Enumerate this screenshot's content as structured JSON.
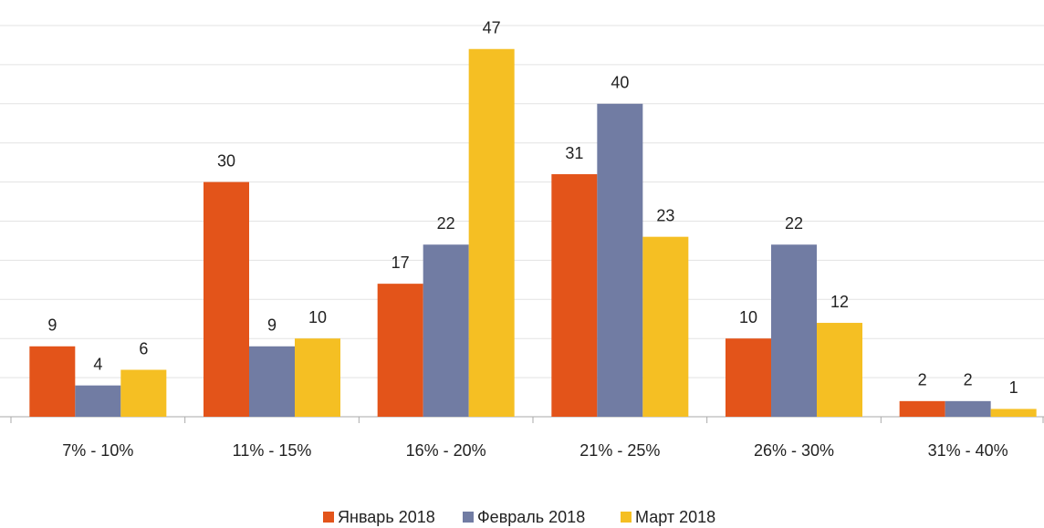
{
  "chart_data": {
    "type": "bar",
    "categories": [
      "7% - 10%",
      "11% - 15%",
      "16% - 20%",
      "21% - 25%",
      "26% - 30%",
      "31% - 40%"
    ],
    "series": [
      {
        "name": "Январь 2018",
        "color": "#e3541a",
        "values": [
          9,
          30,
          17,
          31,
          10,
          2
        ]
      },
      {
        "name": "Февраль 2018",
        "color": "#717ca3",
        "values": [
          4,
          9,
          22,
          40,
          22,
          2
        ]
      },
      {
        "name": "Март 2018",
        "color": "#f5bf23",
        "values": [
          6,
          10,
          47,
          23,
          12,
          1
        ]
      }
    ],
    "ylim": [
      0,
      50
    ],
    "yticks": [
      0,
      5,
      10,
      15,
      20,
      25,
      30,
      35,
      40,
      45,
      50
    ],
    "grid": true,
    "legend": "bottom"
  }
}
